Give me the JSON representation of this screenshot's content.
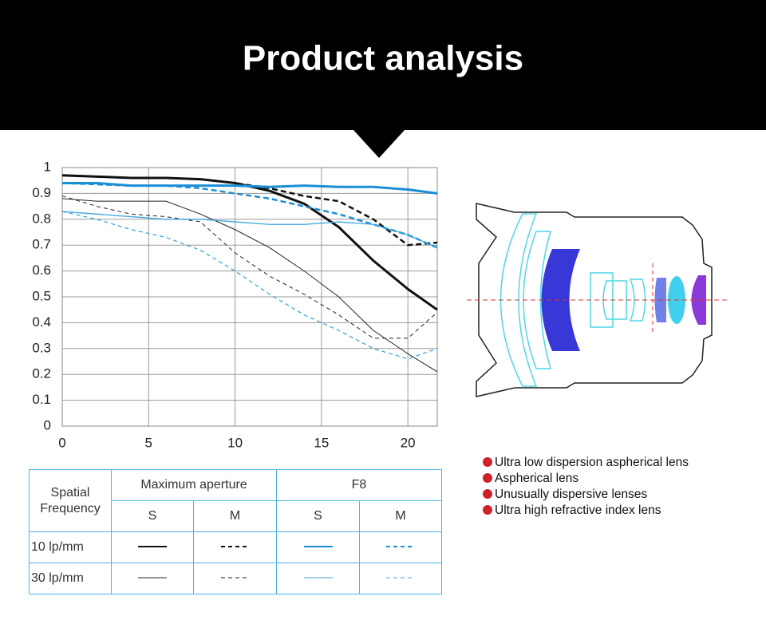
{
  "header": {
    "title": "Product analysis"
  },
  "chart_data": {
    "type": "line",
    "x": [
      0,
      2,
      4,
      6,
      8,
      10,
      12,
      14,
      16,
      18,
      20,
      21.7
    ],
    "xlim": [
      0,
      21.7
    ],
    "xticks": [
      0,
      5,
      10,
      15,
      20
    ],
    "ylim": [
      0,
      1
    ],
    "yticks": [
      0,
      0.1,
      0.2,
      0.3,
      0.4,
      0.5,
      0.6,
      0.7,
      0.8,
      0.9,
      1
    ],
    "grid": true,
    "series": [
      {
        "color": "#111111",
        "dash": false,
        "width": 3,
        "values": [
          0.97,
          0.965,
          0.96,
          0.96,
          0.955,
          0.94,
          0.91,
          0.86,
          0.77,
          0.64,
          0.53,
          0.45
        ]
      },
      {
        "color": "#111111",
        "dash": true,
        "width": 2.5,
        "values": [
          0.97,
          0.965,
          0.96,
          0.96,
          0.955,
          0.94,
          0.92,
          0.89,
          0.87,
          0.8,
          0.7,
          0.71
        ]
      },
      {
        "color": "#1a8fd6",
        "dash": false,
        "width": 3,
        "values": [
          0.94,
          0.94,
          0.93,
          0.93,
          0.93,
          0.93,
          0.925,
          0.93,
          0.925,
          0.925,
          0.915,
          0.9
        ]
      },
      {
        "color": "#1a8fd6",
        "dash": true,
        "width": 2.5,
        "values": [
          0.94,
          0.935,
          0.93,
          0.93,
          0.92,
          0.9,
          0.88,
          0.85,
          0.82,
          0.78,
          0.74,
          0.69
        ]
      },
      {
        "color": "#222222",
        "dash": false,
        "width": 1,
        "values": [
          0.88,
          0.87,
          0.87,
          0.87,
          0.82,
          0.76,
          0.69,
          0.6,
          0.5,
          0.37,
          0.28,
          0.21
        ]
      },
      {
        "color": "#222222",
        "dash": true,
        "width": 1,
        "values": [
          0.89,
          0.85,
          0.82,
          0.81,
          0.79,
          0.67,
          0.58,
          0.51,
          0.43,
          0.34,
          0.34,
          0.44
        ]
      },
      {
        "color": "#3aa6e0",
        "dash": false,
        "width": 1.3,
        "values": [
          0.83,
          0.82,
          0.81,
          0.8,
          0.8,
          0.79,
          0.78,
          0.78,
          0.79,
          0.78,
          0.74,
          0.69
        ]
      },
      {
        "color": "#3aa6e0",
        "dash": true,
        "width": 1.3,
        "values": [
          0.83,
          0.8,
          0.76,
          0.73,
          0.68,
          0.6,
          0.51,
          0.43,
          0.37,
          0.3,
          0.26,
          0.3
        ]
      }
    ]
  },
  "legend_table": {
    "corner": "Spatial Frequency",
    "groups": [
      "Maximum aperture",
      "F8"
    ],
    "columns": [
      "S",
      "M",
      "S",
      "M"
    ],
    "rows": [
      "10 lp/mm",
      "30 lp/mm"
    ]
  },
  "lens_legend": [
    "Ultra low dispersion aspherical lens",
    "Aspherical lens",
    "Unusually dispersive lenses",
    "Ultra high refractive index lens"
  ]
}
